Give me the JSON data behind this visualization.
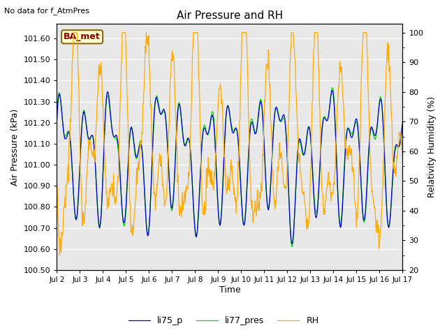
{
  "title": "Air Pressure and RH",
  "top_left_text": "No data for f_AtmPres",
  "box_label": "BA_met",
  "xlabel": "Time",
  "ylabel_left": "Air Pressure (kPa)",
  "ylabel_right": "Relativity Humidity (%)",
  "x_tick_labels": [
    "Jul 2",
    "Jul 3",
    "Jul 4",
    "Jul 5",
    "Jul 6",
    "Jul 7",
    "Jul 8",
    "Jul 9",
    "Jul 10",
    "Jul 11",
    "Jul 12",
    "Jul 13",
    "Jul 14",
    "Jul 15",
    "Jul 16",
    "Jul 17"
  ],
  "ylim_left": [
    100.5,
    101.67
  ],
  "ylim_right": [
    20,
    103
  ],
  "yticks_left": [
    100.5,
    100.6,
    100.7,
    100.8,
    100.9,
    101.0,
    101.1,
    101.2,
    101.3,
    101.4,
    101.5,
    101.6
  ],
  "yticks_right": [
    20,
    30,
    40,
    50,
    60,
    70,
    80,
    90,
    100
  ],
  "color_blue": "#0000cc",
  "color_green": "#00dd00",
  "color_orange": "#ffaa00",
  "legend_labels": [
    "li75_p",
    "li77_pres",
    "RH"
  ],
  "background_color": "#ffffff",
  "plot_bg_color": "#e8e8e8",
  "n_points": 720
}
